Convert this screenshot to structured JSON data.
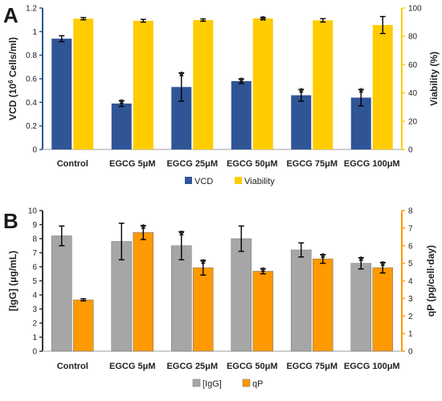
{
  "chart_data": [
    {
      "panel": "A",
      "type": "bar",
      "categories": [
        "Control",
        "EGCG 5μM",
        "EGCG 25μM",
        "EGCG 50μM",
        "EGCG 75μM",
        "EGCG 100μM"
      ],
      "ylabel_left_parts": [
        "VCD (10",
        "6",
        " Cells/ml)"
      ],
      "ylabel_right": "Viability (%)",
      "ylim_left": [
        0,
        1.2
      ],
      "yticks_left": [
        "0",
        "0.2",
        "0.4",
        "0.6",
        "0.8",
        "1",
        "1.2"
      ],
      "ylim_right": [
        0,
        100
      ],
      "yticks_right": [
        "0",
        "20",
        "40",
        "60",
        "80",
        "100"
      ],
      "series": [
        {
          "name": "VCD",
          "axis": "left",
          "color": "#2f5597",
          "axis_color": "#2f5597",
          "values": [
            0.94,
            0.39,
            0.53,
            0.58,
            0.46,
            0.44
          ],
          "errors": [
            0.025,
            0.025,
            0.12,
            0.02,
            0.05,
            0.07
          ],
          "star": [
            false,
            true,
            true,
            true,
            true,
            true
          ]
        },
        {
          "name": "Viability",
          "axis": "right",
          "color": "#ffcc00",
          "axis_color": "#ffcc00",
          "values": [
            92.5,
            91,
            91.5,
            92.7,
            91.3,
            88
          ],
          "errors": [
            0.8,
            1.0,
            0.8,
            0.8,
            1.2,
            6.0
          ],
          "star": [
            false,
            false,
            false,
            true,
            false,
            false
          ]
        }
      ],
      "legend_position": "bottom"
    },
    {
      "panel": "B",
      "type": "bar",
      "categories": [
        "Control",
        "EGCG 5μM",
        "EGCG 25μM",
        "EGCG 50μM",
        "EGCG 75μM",
        "EGCG 100μM"
      ],
      "ylabel_left": "[IgG] (μg/mL)",
      "ylabel_right": "qP (pg/cell·day)",
      "ylim_left": [
        0,
        10
      ],
      "yticks_left": [
        "0",
        "1",
        "2",
        "3",
        "4",
        "5",
        "6",
        "7",
        "8",
        "9",
        "10"
      ],
      "ylim_right": [
        0,
        8
      ],
      "yticks_right": [
        "0",
        "1",
        "2",
        "3",
        "4",
        "5",
        "6",
        "7",
        "8"
      ],
      "series": [
        {
          "name": "[IgG]",
          "axis": "left",
          "color": "#a6a6a6",
          "axis_color": "#333333",
          "values": [
            8.2,
            7.8,
            7.5,
            8.0,
            7.2,
            6.25
          ],
          "errors": [
            0.7,
            1.3,
            1.0,
            0.9,
            0.5,
            0.4
          ],
          "star": [
            false,
            false,
            true,
            false,
            false,
            true
          ]
        },
        {
          "name": "qP",
          "axis": "right",
          "color": "#ff9900",
          "axis_color": "#ff9900",
          "values": [
            2.92,
            6.75,
            4.75,
            4.55,
            5.25,
            4.75
          ],
          "errors": [
            0.06,
            0.4,
            0.42,
            0.15,
            0.25,
            0.3
          ],
          "star": [
            false,
            true,
            true,
            true,
            true,
            true
          ]
        }
      ],
      "legend_position": "bottom"
    }
  ]
}
